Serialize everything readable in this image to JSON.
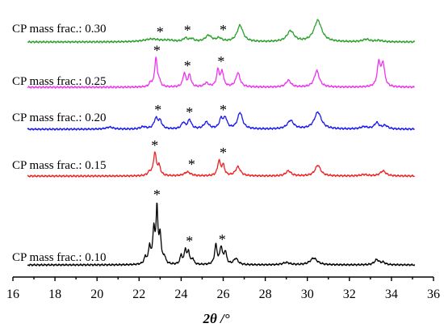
{
  "chart_data": {
    "type": "line",
    "xlabel": "2θ /°",
    "xlim": [
      16,
      36
    ],
    "x_ticks": [
      16,
      18,
      20,
      22,
      24,
      26,
      28,
      30,
      32,
      34,
      36
    ],
    "y_axis": "none",
    "grid": false,
    "legend": "inline labels left of each trace",
    "annotation_symbol": "*",
    "series": [
      {
        "name": "CP mass frac.: 0.30",
        "color": "#2ca02c",
        "x_range": [
          16.7,
          35.1
        ],
        "peaks": [
          {
            "x": 22.6,
            "h": 0.25,
            "w": 0.45
          },
          {
            "x": 23.4,
            "h": 0.12,
            "w": 0.3
          },
          {
            "x": 24.2,
            "h": 0.3,
            "w": 0.12
          },
          {
            "x": 24.5,
            "h": 0.25,
            "w": 0.12
          },
          {
            "x": 25.3,
            "h": 0.55,
            "w": 0.18
          },
          {
            "x": 25.8,
            "h": 0.3,
            "w": 0.15
          },
          {
            "x": 26.8,
            "h": 1.45,
            "w": 0.17
          },
          {
            "x": 29.2,
            "h": 0.95,
            "w": 0.2
          },
          {
            "x": 30.5,
            "h": 1.9,
            "w": 0.22
          },
          {
            "x": 32.8,
            "h": 0.22,
            "w": 0.2
          },
          {
            "x": 33.4,
            "h": 0.12,
            "w": 0.2
          }
        ],
        "stars_x": [
          23.0,
          24.3,
          26.0
        ]
      },
      {
        "name": "CP mass frac.: 0.25",
        "color": "#ee33ee",
        "x_range": [
          16.7,
          35.1
        ],
        "peaks": [
          {
            "x": 22.55,
            "h": 0.35,
            "w": 0.08
          },
          {
            "x": 22.8,
            "h": 2.55,
            "w": 0.07
          },
          {
            "x": 22.95,
            "h": 0.5,
            "w": 0.07
          },
          {
            "x": 24.15,
            "h": 1.2,
            "w": 0.08
          },
          {
            "x": 24.4,
            "h": 1.05,
            "w": 0.08
          },
          {
            "x": 25.2,
            "h": 0.35,
            "w": 0.12
          },
          {
            "x": 25.75,
            "h": 1.45,
            "w": 0.08
          },
          {
            "x": 25.95,
            "h": 1.3,
            "w": 0.08
          },
          {
            "x": 26.7,
            "h": 1.25,
            "w": 0.12
          },
          {
            "x": 29.1,
            "h": 0.6,
            "w": 0.14
          },
          {
            "x": 30.45,
            "h": 1.45,
            "w": 0.14
          },
          {
            "x": 33.4,
            "h": 2.1,
            "w": 0.09
          },
          {
            "x": 33.6,
            "h": 2.0,
            "w": 0.09
          }
        ],
        "stars_x": [
          22.85,
          24.3,
          25.9
        ]
      },
      {
        "name": "CP mass frac.: 0.20",
        "color": "#1a1aee",
        "x_range": [
          16.7,
          35.1
        ],
        "peaks": [
          {
            "x": 20.6,
            "h": 0.18,
            "w": 0.2
          },
          {
            "x": 22.2,
            "h": 0.2,
            "w": 0.15
          },
          {
            "x": 22.8,
            "h": 0.9,
            "w": 0.11
          },
          {
            "x": 23.0,
            "h": 0.65,
            "w": 0.1
          },
          {
            "x": 24.1,
            "h": 0.55,
            "w": 0.1
          },
          {
            "x": 24.4,
            "h": 0.8,
            "w": 0.1
          },
          {
            "x": 25.2,
            "h": 0.6,
            "w": 0.14
          },
          {
            "x": 25.9,
            "h": 0.85,
            "w": 0.1
          },
          {
            "x": 26.1,
            "h": 0.9,
            "w": 0.1
          },
          {
            "x": 26.8,
            "h": 1.45,
            "w": 0.14
          },
          {
            "x": 29.2,
            "h": 0.75,
            "w": 0.18
          },
          {
            "x": 30.5,
            "h": 1.5,
            "w": 0.2
          },
          {
            "x": 32.7,
            "h": 0.2,
            "w": 0.2
          },
          {
            "x": 33.3,
            "h": 0.55,
            "w": 0.13
          },
          {
            "x": 33.7,
            "h": 0.3,
            "w": 0.15
          }
        ],
        "stars_x": [
          22.9,
          24.4,
          26.0
        ]
      },
      {
        "name": "CP mass frac.: 0.15",
        "color": "#ee2222",
        "x_range": [
          16.7,
          35.1
        ],
        "peaks": [
          {
            "x": 22.5,
            "h": 0.3,
            "w": 0.1
          },
          {
            "x": 22.75,
            "h": 2.0,
            "w": 0.08
          },
          {
            "x": 22.95,
            "h": 0.8,
            "w": 0.08
          },
          {
            "x": 24.3,
            "h": 0.35,
            "w": 0.18
          },
          {
            "x": 25.8,
            "h": 1.3,
            "w": 0.08
          },
          {
            "x": 26.0,
            "h": 0.9,
            "w": 0.08
          },
          {
            "x": 26.7,
            "h": 0.8,
            "w": 0.14
          },
          {
            "x": 29.1,
            "h": 0.45,
            "w": 0.15
          },
          {
            "x": 30.5,
            "h": 0.95,
            "w": 0.16
          },
          {
            "x": 32.7,
            "h": 0.12,
            "w": 0.2
          },
          {
            "x": 33.6,
            "h": 0.45,
            "w": 0.16
          }
        ],
        "stars_x": [
          22.75,
          24.5,
          26.0
        ]
      },
      {
        "name": "CP mass frac.: 0.10",
        "color": "#000000",
        "x_range": [
          16.7,
          35.1
        ],
        "peaks": [
          {
            "x": 22.3,
            "h": 0.6,
            "w": 0.07
          },
          {
            "x": 22.5,
            "h": 1.5,
            "w": 0.06
          },
          {
            "x": 22.7,
            "h": 3.0,
            "w": 0.06
          },
          {
            "x": 22.85,
            "h": 4.8,
            "w": 0.05
          },
          {
            "x": 23.0,
            "h": 2.5,
            "w": 0.06
          },
          {
            "x": 23.2,
            "h": 0.6,
            "w": 0.07
          },
          {
            "x": 24.0,
            "h": 0.8,
            "w": 0.06
          },
          {
            "x": 24.2,
            "h": 1.3,
            "w": 0.06
          },
          {
            "x": 24.35,
            "h": 1.1,
            "w": 0.06
          },
          {
            "x": 24.55,
            "h": 0.5,
            "w": 0.06
          },
          {
            "x": 25.65,
            "h": 1.7,
            "w": 0.07
          },
          {
            "x": 25.9,
            "h": 1.5,
            "w": 0.07
          },
          {
            "x": 26.1,
            "h": 1.1,
            "w": 0.07
          },
          {
            "x": 26.6,
            "h": 0.55,
            "w": 0.12
          },
          {
            "x": 29.0,
            "h": 0.2,
            "w": 0.2
          },
          {
            "x": 30.3,
            "h": 0.6,
            "w": 0.2
          },
          {
            "x": 33.3,
            "h": 0.45,
            "w": 0.13
          },
          {
            "x": 33.6,
            "h": 0.2,
            "w": 0.12
          }
        ],
        "stars_x": [
          22.85,
          24.4,
          25.95
        ]
      }
    ]
  }
}
